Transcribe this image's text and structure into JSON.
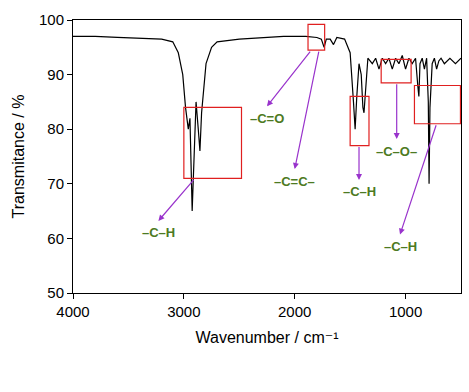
{
  "chart_data": {
    "type": "line",
    "xlabel": "Wavenumber / cm⁻¹",
    "ylabel": "Transmitance / %",
    "x": [
      4000,
      3800,
      3600,
      3400,
      3200,
      3100,
      3050,
      3010,
      2985,
      2960,
      2945,
      2925,
      2910,
      2890,
      2870,
      2855,
      2840,
      2800,
      2750,
      2700,
      2500,
      2300,
      2100,
      1900,
      1800,
      1760,
      1735,
      1715,
      1680,
      1650,
      1620,
      1550,
      1500,
      1470,
      1455,
      1440,
      1420,
      1400,
      1385,
      1375,
      1360,
      1340,
      1300,
      1270,
      1240,
      1210,
      1180,
      1150,
      1120,
      1090,
      1060,
      1030,
      1000,
      970,
      940,
      910,
      890,
      880,
      870,
      850,
      830,
      810,
      795,
      788,
      780,
      760,
      740,
      720,
      700,
      680,
      650,
      600,
      550,
      500
    ],
    "values": [
      97,
      97,
      96.8,
      96.7,
      96.5,
      96,
      94,
      90,
      84,
      80,
      82,
      65,
      75,
      85,
      80,
      76,
      83,
      92,
      95,
      96,
      96.5,
      96.8,
      97,
      97,
      96.8,
      96.5,
      95,
      96.5,
      96.5,
      95.5,
      96.8,
      96.5,
      94,
      85,
      80,
      86,
      92,
      90,
      84,
      83,
      88,
      93,
      92,
      93,
      91,
      93,
      92,
      93,
      91,
      93,
      92,
      93.5,
      91,
      93,
      92,
      93,
      88,
      86,
      92,
      93,
      91,
      93,
      85,
      70,
      84,
      92,
      93,
      91,
      92.5,
      93,
      92,
      93,
      92,
      93
    ],
    "color": "#000000",
    "xlim": [
      4000,
      500
    ],
    "xticks": [
      4000,
      3000,
      2000,
      1000
    ],
    "ylim": [
      50,
      100
    ],
    "yticks": [
      50,
      60,
      70,
      80,
      90,
      100
    ],
    "grid": false,
    "annotations": [
      "–C–H",
      "–C=O",
      "–C=C–",
      "–C–H",
      "–C–O–",
      "–C–H"
    ]
  }
}
